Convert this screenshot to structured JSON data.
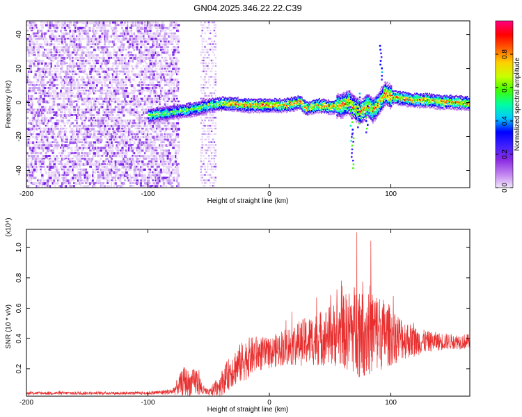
{
  "chart_data": [
    {
      "type": "heatmap",
      "title": "GN04.2025.346.22.22.C39",
      "xlabel": "Height of straight line (km)",
      "ylabel": "Frequency (Hz)",
      "xlim": [
        -200,
        165
      ],
      "ylim": [
        -50,
        48
      ],
      "x_ticks": [
        -200,
        -100,
        0,
        100
      ],
      "x_tick_labels": [
        "-200",
        "-100",
        "0",
        "100"
      ],
      "y_ticks": [
        -40,
        -20,
        0,
        20,
        40
      ],
      "y_tick_labels": [
        "-40",
        "-20",
        "0",
        "20",
        "40"
      ],
      "colorbar": {
        "label": "Normalized spectral amplitude",
        "range": [
          0,
          1
        ],
        "ticks": [
          0.0,
          0.2,
          0.4,
          0.6,
          0.8
        ],
        "tick_labels": [
          "0.0",
          "0.2",
          "0.4",
          "0.6",
          "0.8"
        ],
        "colors": [
          "#f2e6fa",
          "#c080f0",
          "#8a2be2",
          "#4020ff",
          "#0000ff",
          "#00c8ff",
          "#00ffa0",
          "#40ff00",
          "#c8ff00",
          "#ffd000",
          "#ff6000",
          "#ff0000",
          "#ff0080"
        ]
      },
      "ridge": {
        "x": [
          -100,
          -90,
          -80,
          -70,
          -60,
          -50,
          -40,
          -30,
          -20,
          -10,
          0,
          10,
          20,
          25,
          30,
          40,
          50,
          60,
          65,
          70,
          75,
          80,
          85,
          90,
          95,
          100,
          110,
          120,
          130,
          140,
          150,
          165
        ],
        "freq": [
          -7,
          -6,
          -5,
          -4,
          -3,
          -1,
          0,
          0,
          -1,
          -1,
          -1,
          -1,
          0,
          1,
          -3,
          -1,
          -2,
          -1,
          1,
          -3,
          -5,
          -1,
          -4,
          0,
          6,
          4,
          3,
          2,
          2,
          1,
          1,
          0
        ]
      },
      "noise_region_x": [
        -200,
        -75
      ],
      "noise_band_x": [
        -57,
        -44
      ]
    },
    {
      "type": "line",
      "xlabel": "Height of straight line (km)",
      "ylabel": "SNR (10 * v/v)",
      "y_scale_label": "(x10⁴)",
      "xlim": [
        -200,
        165
      ],
      "ylim": [
        0.02,
        1.12
      ],
      "x_ticks": [
        -200,
        -100,
        0,
        100
      ],
      "x_tick_labels": [
        "-200",
        "-100",
        "0",
        "100"
      ],
      "y_ticks": [
        0.2,
        0.4,
        0.6,
        0.8,
        1.0
      ],
      "y_tick_labels": [
        "0.2",
        "0.4",
        "0.6",
        "0.8",
        "1.0"
      ],
      "series": [
        {
          "name": "SNR",
          "color": "#e83030",
          "envelope_x": [
            -200,
            -150,
            -100,
            -80,
            -70,
            -65,
            -60,
            -55,
            -50,
            -40,
            -30,
            -20,
            -10,
            0,
            10,
            20,
            30,
            40,
            50,
            60,
            70,
            75,
            80,
            90,
            100,
            110,
            120,
            130,
            140,
            150,
            165
          ],
          "envelope_mean": [
            0.04,
            0.04,
            0.04,
            0.05,
            0.12,
            0.1,
            0.12,
            0.06,
            0.04,
            0.1,
            0.2,
            0.26,
            0.3,
            0.3,
            0.34,
            0.36,
            0.38,
            0.4,
            0.42,
            0.44,
            0.46,
            0.48,
            0.46,
            0.44,
            0.42,
            0.4,
            0.38,
            0.38,
            0.38,
            0.38,
            0.38
          ],
          "envelope_spread": [
            0.01,
            0.01,
            0.01,
            0.02,
            0.1,
            0.08,
            0.1,
            0.04,
            0.02,
            0.08,
            0.12,
            0.14,
            0.12,
            0.1,
            0.12,
            0.14,
            0.16,
            0.18,
            0.2,
            0.24,
            0.3,
            0.34,
            0.32,
            0.26,
            0.2,
            0.14,
            0.1,
            0.07,
            0.06,
            0.05,
            0.05
          ],
          "peak": {
            "x": 72,
            "y": 1.1
          }
        }
      ]
    }
  ]
}
